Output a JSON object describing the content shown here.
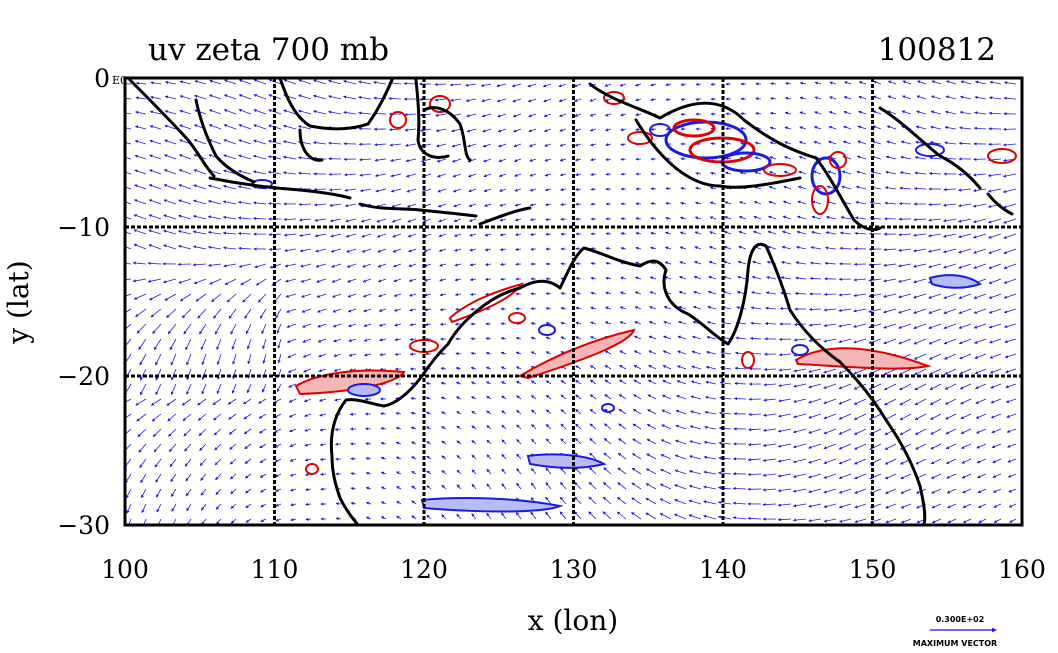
{
  "header": {
    "title_left": "uv zeta 700 mb",
    "title_right": "100812"
  },
  "axes": {
    "xlabel": "x (lon)",
    "ylabel": "y (lat)",
    "xlim": [
      100,
      160
    ],
    "ylim": [
      -30,
      0
    ],
    "x_ticks": [
      "100",
      "110",
      "120",
      "130",
      "140",
      "150",
      "160"
    ],
    "y_ticks": [
      "0",
      "−10",
      "−20",
      "−30"
    ],
    "y_top_suffix": "E0",
    "grid": "on"
  },
  "vector_key": {
    "value_label": "0.300E+02",
    "caption": "MAXIMUM VECTOR"
  },
  "colors": {
    "vectors": "#1a1ae6",
    "positive_contour": "#e00000",
    "positive_fill": "#f4b6b6",
    "negative_contour": "#1a1ae6",
    "negative_fill": "#b7bdf2",
    "coast": "#000000"
  }
}
